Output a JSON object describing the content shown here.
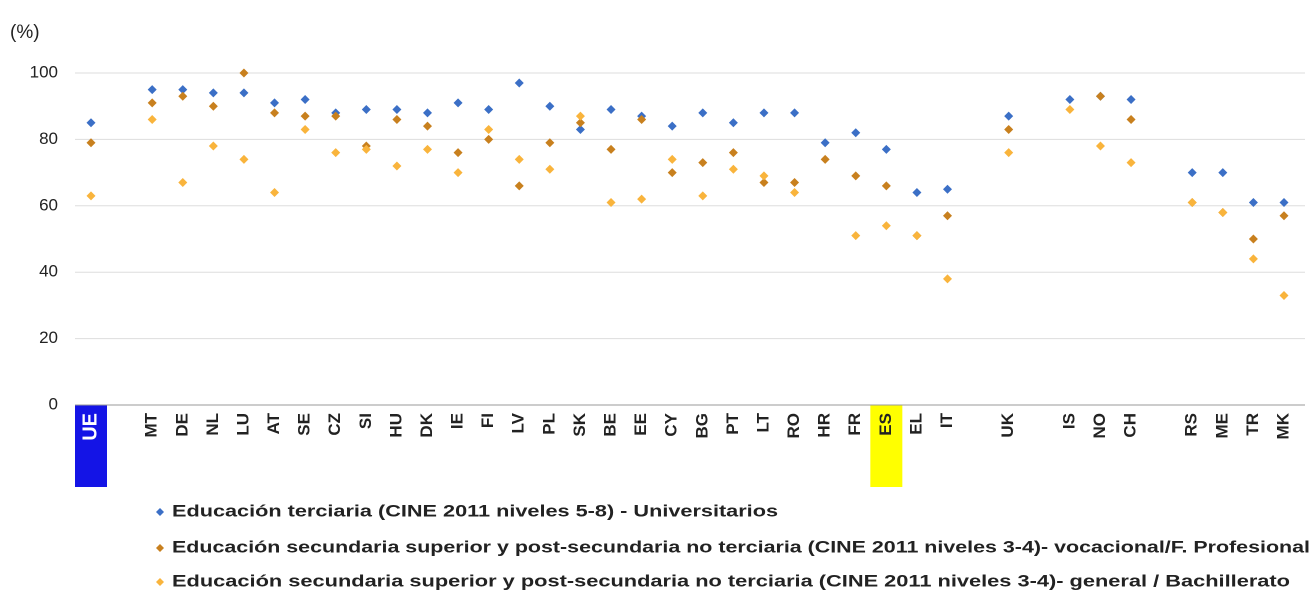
{
  "chart_data": {
    "type": "dot",
    "y_label": "(%)",
    "categories": [
      "UE",
      null,
      "MT",
      "DE",
      "NL",
      "LU",
      "AT",
      "SE",
      "CZ",
      "SI",
      "HU",
      "DK",
      "IE",
      "FI",
      "LV",
      "PL",
      "SK",
      "BE",
      "EE",
      "CY",
      "BG",
      "PT",
      "LT",
      "RO",
      "HR",
      "FR",
      "ES",
      "EL",
      "IT",
      null,
      "UK",
      null,
      "IS",
      "NO",
      "CH",
      null,
      "RS",
      "ME",
      "TR",
      "MK"
    ],
    "label_backgrounds": {
      "UE": "#1414e6",
      "ES": "#ffff00"
    },
    "series": [
      {
        "name": "Educación terciaria (CINE 2011 niveles 5-8) - Universitarios",
        "color": "#3b6fc6",
        "values": [
          85,
          null,
          95,
          95,
          94,
          94,
          91,
          92,
          88,
          89,
          89,
          88,
          91,
          89,
          97,
          90,
          83,
          89,
          87,
          84,
          88,
          85,
          88,
          88,
          79,
          82,
          77,
          64,
          65,
          null,
          87,
          null,
          92,
          93,
          92,
          null,
          70,
          70,
          61,
          61
        ]
      },
      {
        "name": "Educación secundaria superior y post-secundaria no terciaria (CINE 2011 niveles 3-4)- vocacional/F. Profesional",
        "color": "#c8801e",
        "values": [
          79,
          null,
          91,
          93,
          90,
          100,
          88,
          87,
          87,
          78,
          86,
          84,
          76,
          80,
          66,
          79,
          85,
          77,
          86,
          70,
          73,
          76,
          67,
          67,
          74,
          69,
          66,
          51,
          57,
          null,
          83,
          null,
          null,
          93,
          86,
          null,
          61,
          58,
          50,
          57
        ]
      },
      {
        "name": "Educación secundaria superior y post-secundaria no terciaria (CINE 2011 niveles 3-4)- general / Bachillerato",
        "color": "#f9b43c",
        "values": [
          63,
          null,
          86,
          67,
          78,
          74,
          64,
          83,
          76,
          77,
          72,
          77,
          70,
          83,
          74,
          71,
          87,
          61,
          62,
          74,
          63,
          71,
          69,
          64,
          null,
          51,
          54,
          51,
          38,
          null,
          76,
          null,
          89,
          78,
          73,
          null,
          61,
          58,
          44,
          33
        ]
      }
    ],
    "ylim": [
      0,
      100
    ],
    "yticks": [
      0,
      20,
      40,
      60,
      80,
      100
    ],
    "grid": true
  }
}
